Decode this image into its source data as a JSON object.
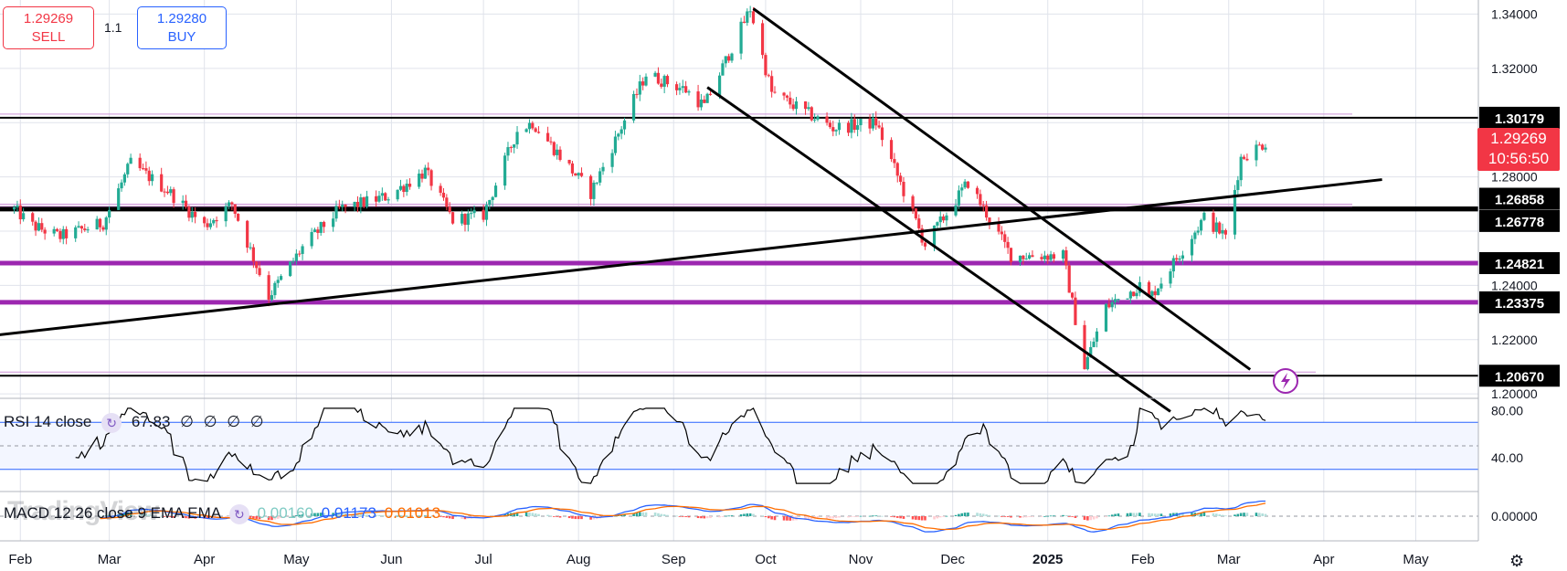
{
  "trade": {
    "sell_price": "1.29269",
    "sell_label": "SELL",
    "spread": "1.1",
    "buy_price": "1.29280",
    "buy_label": "BUY"
  },
  "current_price": {
    "price": "1.29269",
    "countdown": "10:56:50"
  },
  "colors": {
    "up": "#22ab94",
    "down": "#f23645",
    "level_purple": "#9c27b0",
    "trendline": "#000000",
    "rsi_line": "#000000",
    "rsi_band": "#2962ff",
    "macd_line": "#2962ff",
    "signal_line": "#ff6d00",
    "grid": "#e0e3eb"
  },
  "price_axis": {
    "ticks": [
      "1.34000",
      "1.32000",
      "1.28000",
      "1.24000",
      "1.22000",
      "1.20000"
    ]
  },
  "time_axis": {
    "labels": [
      "Feb",
      "Mar",
      "Apr",
      "May",
      "Jun",
      "Jul",
      "Aug",
      "Sep",
      "Oct",
      "Nov",
      "Dec",
      "2025",
      "Feb",
      "Mar",
      "Apr",
      "May"
    ]
  },
  "levels": [
    {
      "label": "1.30179",
      "value": 1.30179
    },
    {
      "label": "1.26858",
      "value": 1.26858
    },
    {
      "label": "1.26778",
      "value": 1.26778
    },
    {
      "label": "1.24821",
      "value": 1.24821
    },
    {
      "label": "1.23375",
      "value": 1.23375
    },
    {
      "label": "1.20670",
      "value": 1.2067
    }
  ],
  "rsi": {
    "label": "RSI 14 close",
    "value": "67.83",
    "placeholders": [
      "∅",
      "∅",
      "∅",
      "∅"
    ],
    "axis_ticks": [
      "80.00",
      "40.00"
    ]
  },
  "macd": {
    "label": "MACD 12 26 close 9 EMA EMA",
    "histogram": "0.00160",
    "macd": "0.01173",
    "signal": "0.01013",
    "axis_ticks": [
      "0.00000"
    ]
  },
  "watermark": "TradingView",
  "icons": {
    "cycle": "cycle-icon",
    "lightning": "lightning-icon",
    "settings": "settings-icon"
  },
  "chart_data": {
    "type": "candlestick",
    "title": "",
    "ylim": [
      1.195,
      1.3425
    ],
    "anchors": [
      [
        "2024-01-30",
        1.268
      ],
      [
        "2024-02-05",
        1.262
      ],
      [
        "2024-02-14",
        1.258
      ],
      [
        "2024-02-28",
        1.263
      ],
      [
        "2024-03-08",
        1.285
      ],
      [
        "2024-03-20",
        1.275
      ],
      [
        "2024-04-01",
        1.262
      ],
      [
        "2024-04-10",
        1.27
      ],
      [
        "2024-04-22",
        1.236
      ],
      [
        "2024-05-03",
        1.254
      ],
      [
        "2024-05-15",
        1.268
      ],
      [
        "2024-05-31",
        1.273
      ],
      [
        "2024-06-12",
        1.282
      ],
      [
        "2024-06-21",
        1.264
      ],
      [
        "2024-07-01",
        1.266
      ],
      [
        "2024-07-12",
        1.297
      ],
      [
        "2024-07-17",
        1.3
      ],
      [
        "2024-08-05",
        1.274
      ],
      [
        "2024-08-23",
        1.318
      ],
      [
        "2024-09-05",
        1.312
      ],
      [
        "2024-09-11",
        1.306
      ],
      [
        "2024-09-26",
        1.342
      ],
      [
        "2024-10-03",
        1.311
      ],
      [
        "2024-10-23",
        1.298
      ],
      [
        "2024-11-06",
        1.3
      ],
      [
        "2024-11-22",
        1.255
      ],
      [
        "2024-12-06",
        1.278
      ],
      [
        "2024-12-20",
        1.251
      ],
      [
        "2025-01-06",
        1.251
      ],
      [
        "2025-01-13",
        1.21
      ],
      [
        "2025-01-20",
        1.232
      ],
      [
        "2025-01-31",
        1.24
      ],
      [
        "2025-02-03",
        1.235
      ],
      [
        "2025-02-21",
        1.265
      ],
      [
        "2025-02-28",
        1.258
      ],
      [
        "2025-03-05",
        1.287
      ],
      [
        "2025-03-13",
        1.2927
      ]
    ],
    "levels": [
      1.30179,
      1.26858,
      1.26778,
      1.24821,
      1.23375,
      1.2067
    ],
    "trendlines": [
      {
        "from": [
          "2024-01-23",
          1.2215
        ],
        "to": [
          "2025-04-20",
          1.279
        ]
      },
      {
        "from": [
          "2024-09-27",
          1.342
        ],
        "to": [
          "2025-03-08",
          1.209
        ]
      },
      {
        "from": [
          "2024-09-12",
          1.313
        ],
        "to": [
          "2025-02-10",
          1.1935
        ]
      }
    ],
    "rsi": {
      "value": 67.83,
      "bands": [
        70,
        30
      ]
    },
    "macd": {
      "histogram": 0.0016,
      "macd": 0.01173,
      "signal": 0.01013
    }
  }
}
